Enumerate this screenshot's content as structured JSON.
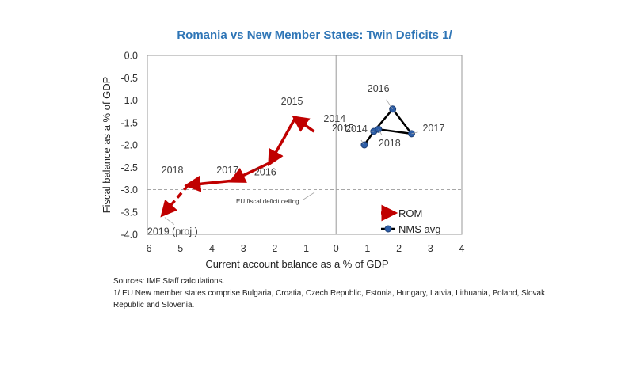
{
  "chart_data": {
    "type": "line",
    "title": "Romania vs New Member States: Twin Deficits 1/",
    "xlabel": "Current account balance as a % of GDP",
    "ylabel": "Fiscal balance as a % of GDP",
    "xlim": [
      -6,
      4
    ],
    "ylim": [
      -4.0,
      0.0
    ],
    "xticks": [
      "-6",
      "-5",
      "-4",
      "-3",
      "-2",
      "-1",
      "0",
      "1",
      "2",
      "3",
      "4"
    ],
    "yticks": [
      "0.0",
      "-0.5",
      "-1.0",
      "-1.5",
      "-2.0",
      "-2.5",
      "-3.0",
      "-3.5",
      "-4.0"
    ],
    "legend_position": "bottom-right",
    "reference_line": {
      "y": -3.0,
      "label": "EU fiscal deficit ceiling"
    },
    "series": [
      {
        "name": "ROM",
        "color": "#c00000",
        "marker": "arrow",
        "points": [
          {
            "label": "2014",
            "x": -0.7,
            "y": -1.7
          },
          {
            "label": "2015",
            "x": -1.3,
            "y": -1.4
          },
          {
            "label": "2016",
            "x": -2.1,
            "y": -2.4
          },
          {
            "label": "2017",
            "x": -3.3,
            "y": -2.8
          },
          {
            "label": "2018",
            "x": -4.7,
            "y": -2.9
          },
          {
            "label": "2019 (proj.)",
            "x": -5.5,
            "y": -3.55,
            "projected": true
          }
        ]
      },
      {
        "name": "NMS avg",
        "color": "#000000",
        "marker_color": "#2e5fa8",
        "marker": "circle",
        "points": [
          {
            "label": "2014",
            "x": 0.9,
            "y": -2.0
          },
          {
            "label": "2015",
            "x": 1.2,
            "y": -1.7
          },
          {
            "label": "2016",
            "x": 1.8,
            "y": -1.2
          },
          {
            "label": "2017",
            "x": 2.4,
            "y": -1.75
          },
          {
            "label": "2018",
            "x": 1.35,
            "y": -1.65
          }
        ]
      }
    ]
  },
  "notes": {
    "sources": "Sources: IMF Staff calculations.",
    "footnote": "1/ EU New member states comprise Bulgaria, Croatia, Czech Republic, Estonia, Hungary, Latvia, Lithuania, Poland, Slovak Republic and Slovenia."
  }
}
